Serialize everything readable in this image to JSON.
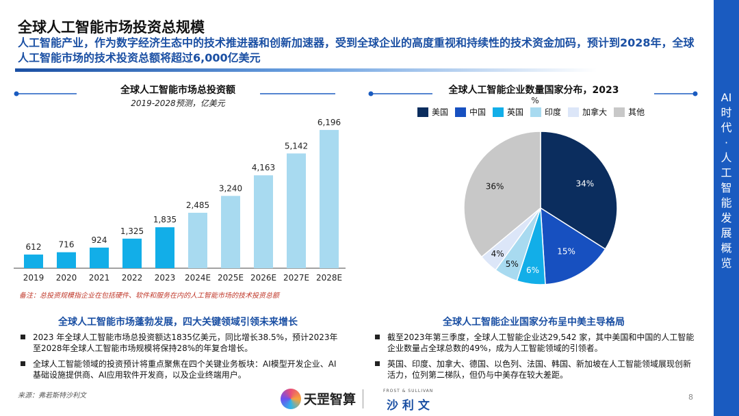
{
  "header": {
    "title": "全球人工智能市场投资总规模",
    "subtitle": "人工智能产业，作为数字经济生态中的技术推进器和创新加速器，受到全球企业的高度重视和持续性的技术资金加码，预计到2028年，全球人工智能市场的技术投资总额将超过6,000亿美元"
  },
  "side_label": "AI时代·人工智能发展概览",
  "left_chart": {
    "title": "全球人工智能市场总投资额",
    "subtitle": "2019-2028预测，亿美元",
    "note": "备注：总投资规模指企业在包括硬件、软件和服务在内的人工智能市场的技术投资总额"
  },
  "right_chart": {
    "title": "全球人工智能企业数量国家分布，2023",
    "unit": "%"
  },
  "chart_data": [
    {
      "type": "bar",
      "title": "全球人工智能市场总投资额",
      "subtitle": "2019-2028预测，亿美元",
      "categories": [
        "2019",
        "2020",
        "2021",
        "2022",
        "2023",
        "2024E",
        "2025E",
        "2026E",
        "2027E",
        "2028E"
      ],
      "values": [
        612,
        716,
        924,
        1325,
        1835,
        2485,
        3240,
        4163,
        5142,
        6196
      ],
      "value_labels": [
        "612",
        "716",
        "924",
        "1,325",
        "1,835",
        "2,485",
        "3,240",
        "4,163",
        "5,142",
        "6,196"
      ],
      "actual_color": "#12aee8",
      "forecast_color": "#a8daf0",
      "ylim": [
        0,
        6500
      ]
    },
    {
      "type": "pie",
      "title": "全球人工智能企业数量国家分布，2023",
      "legend_position": "top",
      "slices": [
        {
          "name": "美国",
          "value": 34,
          "label": "34%",
          "color": "#0b2d5e",
          "label_color": "#ffffff"
        },
        {
          "name": "中国",
          "value": 15,
          "label": "15%",
          "color": "#1750c0",
          "label_color": "#ffffff"
        },
        {
          "name": "英国",
          "value": 6,
          "label": "6%",
          "color": "#12aee8",
          "label_color": "#ffffff"
        },
        {
          "name": "印度",
          "value": 5,
          "label": "5%",
          "color": "#a8daf0",
          "label_color": "#111111"
        },
        {
          "name": "加拿大",
          "value": 4,
          "label": "4%",
          "color": "#dce6f8",
          "label_color": "#111111"
        },
        {
          "name": "其他",
          "value": 36,
          "label": "36%",
          "color": "#c8c8c8",
          "label_color": "#111111"
        }
      ]
    }
  ],
  "left_section": {
    "heading": "全球人工智能市场蓬勃发展，四大关键领域引领未来增长",
    "bullets": [
      "2023 年全球人工智能市场总投资额达1835亿美元，同比增长38.5%，预计2023年至2028年全球人工智能市场规模将保持28%的年复合增长。",
      "全球人工智能领域的投资预计将重点聚焦在四个关键业务板块：AI模型开发企业、AI基础设施提供商、AI应用软件开发商，以及企业终端用户。"
    ]
  },
  "right_section": {
    "heading": "全球人工智能企业国家分布呈中美主导格局",
    "bullets": [
      "截至2023年第三季度，全球人工智能企业达29,542 家，其中美国和中国的人工智能企业数量占全球总数的49%，成为人工智能领域的引领者。",
      "英国、印度、加拿大、德国、以色列、法国、韩国、新加坡在人工智能领域展现创新活力，位列第二梯队，但仍与中美存在较大差距。"
    ]
  },
  "footer": {
    "source": "来源：弗若斯特沙利文",
    "logo1": "天罡智算",
    "logo2_small": "FROST & SULLIVAN",
    "logo2": "沙 利 文",
    "page": "8"
  }
}
